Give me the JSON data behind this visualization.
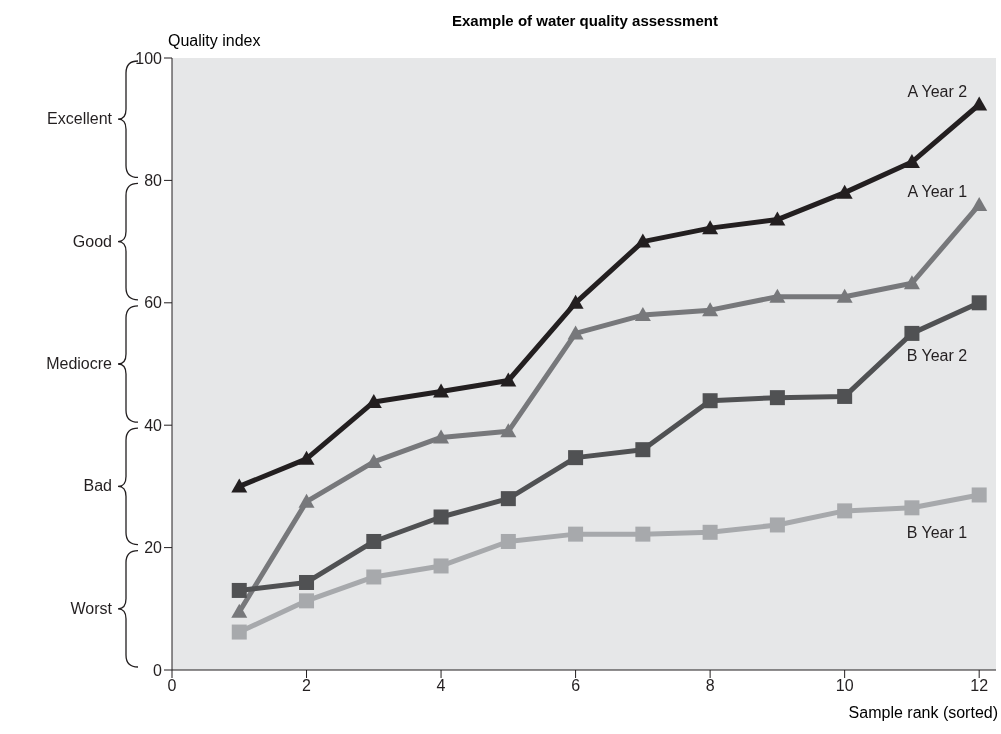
{
  "chart_data": {
    "type": "line",
    "title": "Example of water quality assessment",
    "xlabel": "Sample rank (sorted)",
    "ylabel": "Quality index",
    "x": [
      1,
      2,
      3,
      4,
      5,
      6,
      7,
      8,
      9,
      10,
      11,
      12
    ],
    "series": [
      {
        "name": "A Year 2",
        "color": "#231f20",
        "marker": "triangle",
        "values": [
          30,
          34.5,
          43.8,
          45.5,
          47.3,
          60,
          70,
          72.2,
          73.6,
          78,
          83,
          92.4
        ]
      },
      {
        "name": "A Year 1",
        "color": "#77787b",
        "marker": "triangle",
        "values": [
          9.5,
          27.5,
          34,
          38,
          39,
          55,
          58,
          58.8,
          61,
          61,
          63.2,
          76
        ]
      },
      {
        "name": "B Year 2",
        "color": "#505153",
        "marker": "square",
        "values": [
          13,
          14.3,
          21,
          25,
          28,
          34.7,
          36,
          44,
          44.5,
          44.7,
          55,
          60
        ]
      },
      {
        "name": "B Year 1",
        "color": "#a7a9ac",
        "marker": "square",
        "values": [
          6.2,
          11.3,
          15.2,
          17,
          21,
          22.2,
          22.2,
          22.5,
          23.7,
          26,
          26.5,
          28.6
        ]
      }
    ],
    "xlim": [
      0,
      12.25
    ],
    "xticks": [
      0,
      2,
      4,
      6,
      8,
      10,
      12
    ],
    "ylim": [
      0,
      100
    ],
    "yticks": [
      0,
      20,
      40,
      60,
      80,
      100
    ],
    "annotations": [
      "Excellent",
      "Good",
      "Mediocre",
      "Bad",
      "Worst"
    ],
    "legend": false,
    "line_style": "solid"
  }
}
